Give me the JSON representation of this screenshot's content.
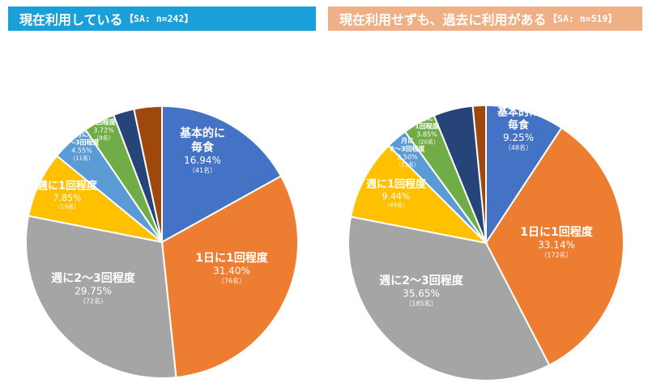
{
  "headers": {
    "left": {
      "title": "現在利用している",
      "sample": "【SA: n=242】",
      "color": "#1a9fd9"
    },
    "right": {
      "title": "現在利用せずも、過去に利用がある",
      "sample": "【SA: n=519】",
      "color": "#f0b086"
    }
  },
  "chart_data": [
    {
      "type": "pie",
      "title": "現在利用している",
      "sample": "【SA: n=242】",
      "slices": [
        {
          "label": "基本的に毎食",
          "lines": [
            "基本的に",
            "毎食"
          ],
          "percent": 16.94,
          "pct_text": "16.94%",
          "count_text": "（41名）",
          "color": "#4472c4"
        },
        {
          "label": "1日に1回程度",
          "lines": [
            "1日に1回程度"
          ],
          "percent": 31.4,
          "pct_text": "31.40%",
          "count_text": "（76名）",
          "color": "#ed7d31"
        },
        {
          "label": "週に2～3回程度",
          "lines": [
            "週に2～3回程度"
          ],
          "percent": 29.75,
          "pct_text": "29.75%",
          "count_text": "（72名）",
          "color": "#a5a5a5"
        },
        {
          "label": "週に1回程度",
          "lines": [
            "週に1回程度"
          ],
          "percent": 7.85,
          "pct_text": "7.85%",
          "count_text": "（19名）",
          "color": "#ffc000"
        },
        {
          "label": "月に2～3回程度",
          "lines": [
            "月に",
            "2～3回程度"
          ],
          "percent": 4.55,
          "pct_text": "4.55%",
          "count_text": "（11名）",
          "color": "#5b9bd5"
        },
        {
          "label": "月に1回程度",
          "lines": [
            "月に",
            "1回程度"
          ],
          "percent": 3.72,
          "pct_text": "3.72%",
          "count_text": "（9名）",
          "color": "#70ad47"
        },
        {
          "label": "",
          "lines": [],
          "percent": 2.48,
          "pct_text": "",
          "count_text": "",
          "color": "#264478"
        },
        {
          "label": "",
          "lines": [],
          "percent": 3.31,
          "pct_text": "",
          "count_text": "",
          "color": "#9e480e"
        }
      ]
    },
    {
      "type": "pie",
      "title": "現在利用せずも、過去に利用がある",
      "sample": "【SA: n=519】",
      "slices": [
        {
          "label": "基本的に毎食",
          "lines": [
            "基本的に",
            "毎食"
          ],
          "percent": 9.25,
          "pct_text": "9.25%",
          "count_text": "（48名）",
          "color": "#4472c4"
        },
        {
          "label": "1日に1回程度",
          "lines": [
            "1日に1回程度"
          ],
          "percent": 33.14,
          "pct_text": "33.14%",
          "count_text": "（172名）",
          "color": "#ed7d31"
        },
        {
          "label": "週に2～3回程度",
          "lines": [
            "週に2～3回程度"
          ],
          "percent": 35.65,
          "pct_text": "35.65%",
          "count_text": "（185名）",
          "color": "#a5a5a5"
        },
        {
          "label": "週に1回程度",
          "lines": [
            "週に1回程度"
          ],
          "percent": 9.44,
          "pct_text": "9.44%",
          "count_text": "（49名）",
          "color": "#ffc000"
        },
        {
          "label": "月に2～3回程度",
          "lines": [
            "月に",
            "2～3回程度"
          ],
          "percent": 2.5,
          "pct_text": "2.50%",
          "count_text": "（13名）",
          "color": "#5b9bd5"
        },
        {
          "label": "月に1回程度",
          "lines": [
            "月に",
            "1回程度"
          ],
          "percent": 3.85,
          "pct_text": "3.85%",
          "count_text": "（20名）",
          "color": "#70ad47"
        },
        {
          "label": "",
          "lines": [],
          "percent": 4.62,
          "pct_text": "",
          "count_text": "",
          "color": "#264478"
        },
        {
          "label": "",
          "lines": [],
          "percent": 1.54,
          "pct_text": "",
          "count_text": "",
          "color": "#9e480e"
        }
      ]
    }
  ]
}
